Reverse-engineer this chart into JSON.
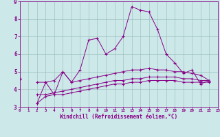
{
  "xlabel": "Windchill (Refroidissement éolien,°C)",
  "background_color": "#cce8e8",
  "line_color": "#880088",
  "xlim": [
    0,
    23
  ],
  "ylim": [
    3,
    9
  ],
  "yticks": [
    3,
    4,
    5,
    6,
    7,
    8,
    9
  ],
  "xticks": [
    0,
    1,
    2,
    3,
    4,
    5,
    6,
    7,
    8,
    9,
    10,
    11,
    12,
    13,
    14,
    15,
    16,
    17,
    18,
    19,
    20,
    21,
    22,
    23
  ],
  "x_values": [
    0,
    1,
    2,
    3,
    4,
    5,
    6,
    7,
    8,
    9,
    10,
    11,
    12,
    13,
    14,
    15,
    16,
    17,
    18,
    19,
    20,
    21,
    22,
    23
  ],
  "series1": [
    4.6,
    null,
    3.2,
    4.4,
    3.7,
    5.0,
    4.4,
    5.1,
    6.8,
    6.9,
    6.0,
    6.3,
    7.0,
    8.7,
    8.5,
    8.4,
    7.4,
    6.0,
    5.5,
    4.9,
    5.1,
    4.3,
    4.5,
    null
  ],
  "series2": [
    4.6,
    null,
    4.4,
    4.4,
    4.5,
    5.0,
    4.4,
    4.5,
    4.6,
    4.7,
    4.8,
    4.9,
    5.0,
    5.1,
    5.1,
    5.2,
    5.1,
    5.1,
    5.0,
    5.0,
    4.9,
    4.8,
    4.5,
    null
  ],
  "series3": [
    4.6,
    null,
    3.7,
    3.7,
    3.8,
    3.9,
    4.0,
    4.1,
    4.2,
    4.3,
    4.4,
    4.5,
    4.5,
    4.6,
    4.6,
    4.7,
    4.7,
    4.7,
    4.7,
    4.6,
    4.6,
    4.5,
    4.5,
    null
  ],
  "series4": [
    4.6,
    null,
    3.2,
    3.6,
    3.7,
    3.7,
    3.8,
    3.9,
    4.0,
    4.1,
    4.2,
    4.3,
    4.3,
    4.4,
    4.4,
    4.5,
    4.5,
    4.5,
    4.5,
    4.4,
    4.4,
    4.4,
    4.4,
    null
  ]
}
